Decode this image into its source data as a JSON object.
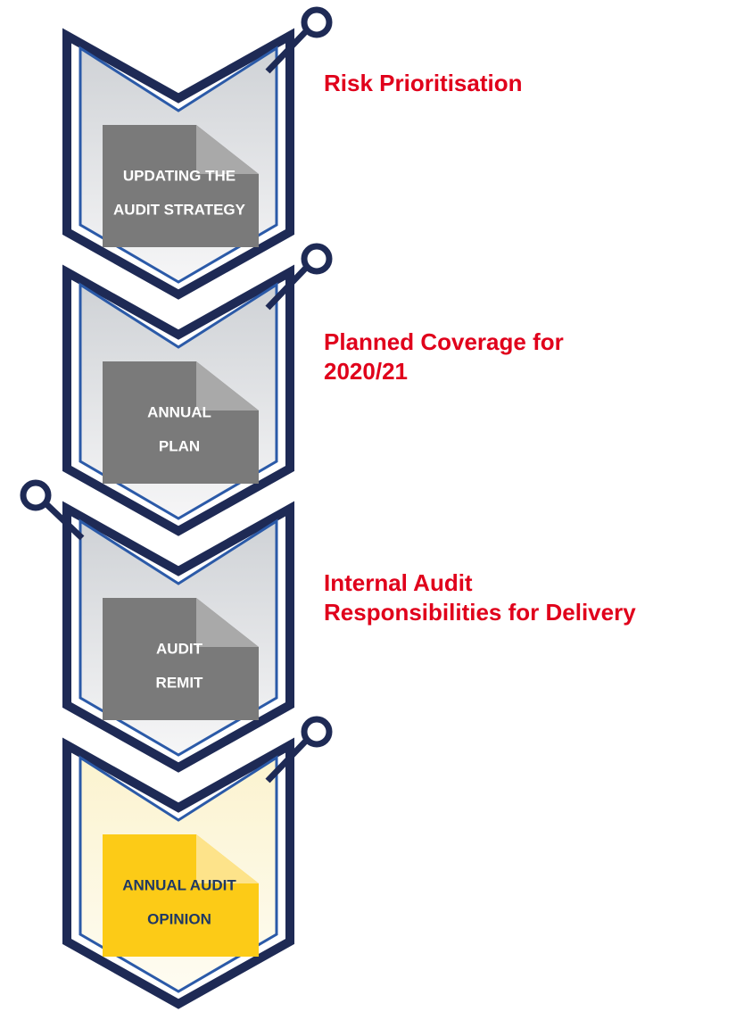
{
  "steps": [
    {
      "box": [
        "UPDATING THE",
        "AUDIT STRATEGY"
      ],
      "label": [
        "Risk Prioritisation"
      ]
    },
    {
      "box": [
        "ANNUAL",
        "PLAN"
      ],
      "label": [
        "Planned Coverage for",
        "2020/21"
      ]
    },
    {
      "box": [
        "AUDIT",
        "REMIT"
      ],
      "label": [
        "Internal Audit",
        "Responsibilities for Delivery"
      ]
    },
    {
      "box": [
        "ANNUAL AUDIT",
        "OPINION"
      ]
    }
  ]
}
